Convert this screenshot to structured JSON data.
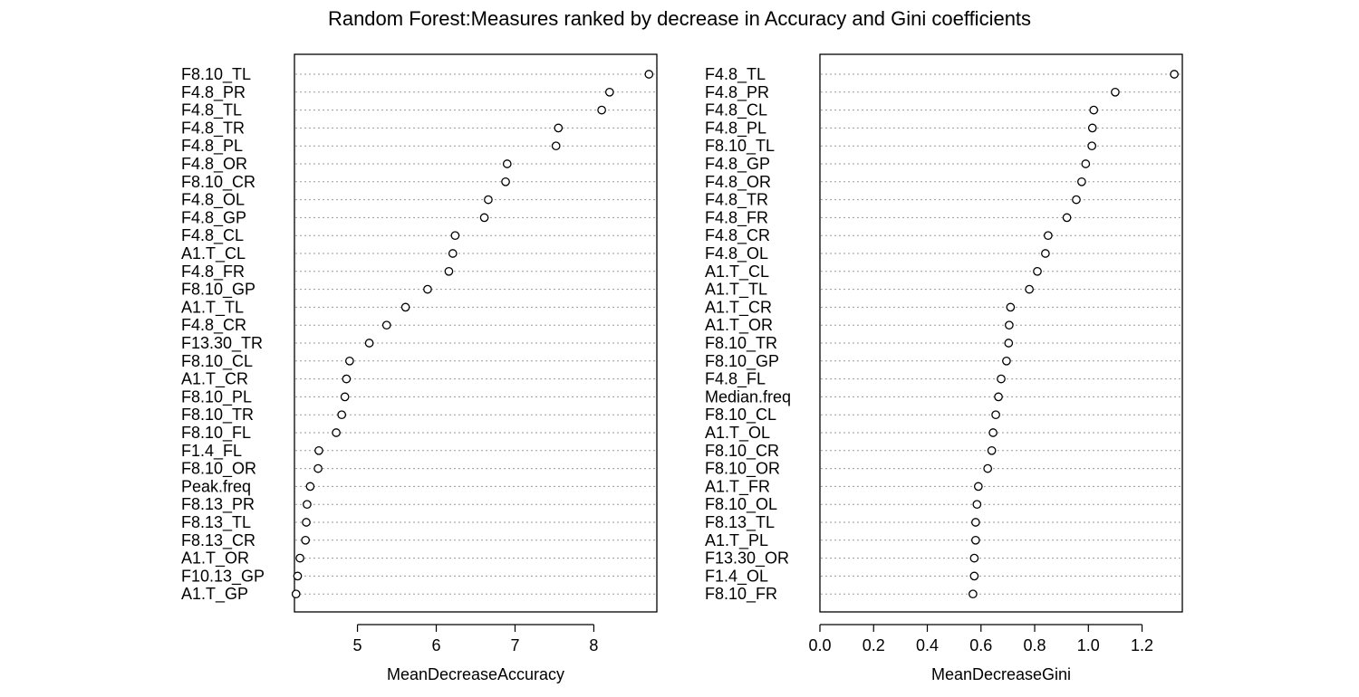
{
  "figure_title": "Random Forest:Measures ranked by decrease in Accuracy and Gini coefficients",
  "chart_data": [
    {
      "type": "scatter",
      "subtype": "dotchart",
      "title": "",
      "xlabel": "MeanDecreaseAccuracy",
      "ylabel": "",
      "xlim": [
        4.2,
        8.8
      ],
      "xticks": [
        5,
        6,
        7,
        8
      ],
      "grid": "horizontal-dotted",
      "marker": "open-circle",
      "categories": [
        "F8.10_TL",
        "F4.8_PR",
        "F4.8_TL",
        "F4.8_TR",
        "F4.8_PL",
        "F4.8_OR",
        "F8.10_CR",
        "F4.8_OL",
        "F4.8_GP",
        "F4.8_CL",
        "A1.T_CL",
        "F4.8_FR",
        "F8.10_GP",
        "A1.T_TL",
        "F4.8_CR",
        "F13.30_TR",
        "F8.10_CL",
        "A1.T_CR",
        "F8.10_PL",
        "F8.10_TR",
        "F8.10_FL",
        "F1.4_FL",
        "F8.10_OR",
        "Peak.freq",
        "F8.13_PR",
        "F8.13_TL",
        "F8.13_CR",
        "A1.T_OR",
        "F10.13_GP",
        "A1.T_GP"
      ],
      "values": [
        8.7,
        8.2,
        8.1,
        7.55,
        7.52,
        6.9,
        6.88,
        6.66,
        6.61,
        6.24,
        6.21,
        6.16,
        5.89,
        5.61,
        5.37,
        5.15,
        4.9,
        4.86,
        4.84,
        4.8,
        4.73,
        4.51,
        4.5,
        4.4,
        4.36,
        4.35,
        4.34,
        4.27,
        4.24,
        4.22
      ]
    },
    {
      "type": "scatter",
      "subtype": "dotchart",
      "title": "",
      "xlabel": "MeanDecreaseGini",
      "ylabel": "",
      "xlim": [
        0,
        1.35
      ],
      "xticks": [
        "0.0",
        "0.2",
        "0.4",
        "0.6",
        "0.8",
        "1.0",
        "1.2"
      ],
      "grid": "horizontal-dotted",
      "marker": "open-circle",
      "categories": [
        "F4.8_TL",
        "F4.8_PR",
        "F4.8_CL",
        "F4.8_PL",
        "F8.10_TL",
        "F4.8_GP",
        "F4.8_OR",
        "F4.8_TR",
        "F4.8_FR",
        "F4.8_CR",
        "F4.8_OL",
        "A1.T_CL",
        "A1.T_TL",
        "A1.T_CR",
        "A1.T_OR",
        "F8.10_TR",
        "F8.10_GP",
        "F4.8_FL",
        "Median.freq",
        "F8.10_CL",
        "A1.T_OL",
        "F8.10_CR",
        "F8.10_OR",
        "A1.T_FR",
        "F8.10_OL",
        "F8.13_TL",
        "A1.T_PL",
        "F13.30_OR",
        "F1.4_OL",
        "F8.10_FR"
      ],
      "values": [
        1.32,
        1.1,
        1.02,
        1.015,
        1.013,
        0.99,
        0.975,
        0.955,
        0.92,
        0.85,
        0.84,
        0.81,
        0.78,
        0.71,
        0.705,
        0.703,
        0.695,
        0.675,
        0.665,
        0.655,
        0.645,
        0.64,
        0.625,
        0.59,
        0.585,
        0.58,
        0.58,
        0.575,
        0.575,
        0.57
      ]
    }
  ]
}
